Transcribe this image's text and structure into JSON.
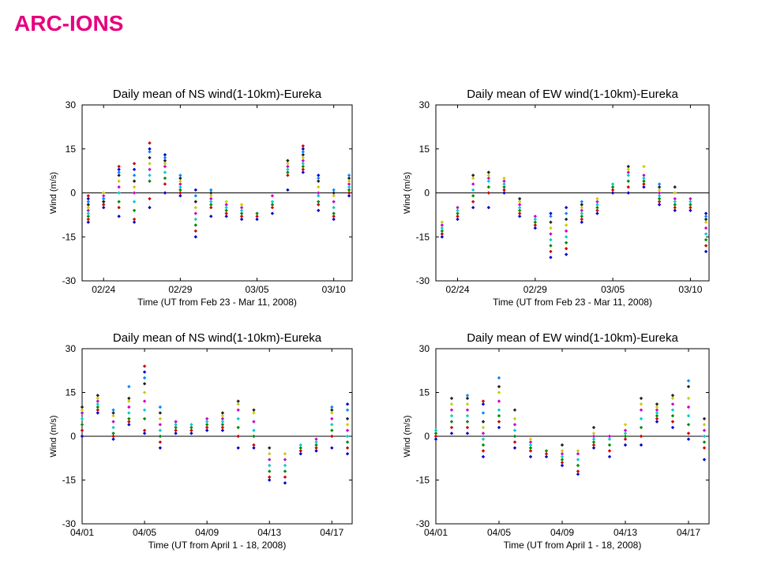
{
  "slide": {
    "title": "ARC-IONS"
  },
  "chart_data": [
    {
      "type": "scatter",
      "title": "Daily mean of NS wind(1-10km)-Eureka",
      "xlabel": "Time (UT from Feb 23 - Mar 11, 2008)",
      "ylabel": "Wind (m/s)",
      "xlim": [
        0.6,
        18.2
      ],
      "ylim": [
        -30,
        30
      ],
      "xticks": [
        {
          "x": 2,
          "label": "02/24"
        },
        {
          "x": 7,
          "label": "02/29"
        },
        {
          "x": 12,
          "label": "03/05"
        },
        {
          "x": 17,
          "label": "03/10"
        }
      ],
      "yticks": [
        30,
        15,
        0,
        -15,
        -30
      ],
      "zero_line": true,
      "grid": false,
      "days": [
        {
          "x": 1,
          "values": [
            -10,
            -9,
            -8,
            -7,
            -6,
            -5,
            -4,
            -3,
            -2,
            -1
          ]
        },
        {
          "x": 2,
          "values": [
            -5,
            -4,
            -3,
            -2,
            -1,
            0,
            -3,
            -2
          ]
        },
        {
          "x": 3,
          "values": [
            -8,
            -5,
            -3,
            0,
            2,
            4,
            6,
            7,
            8,
            9
          ]
        },
        {
          "x": 4,
          "values": [
            -10,
            -9,
            -6,
            -3,
            0,
            2,
            4,
            6,
            8,
            10
          ]
        },
        {
          "x": 5,
          "values": [
            -5,
            -2,
            4,
            6,
            8,
            10,
            12,
            14,
            15,
            17
          ]
        },
        {
          "x": 6,
          "values": [
            0,
            3,
            5,
            7,
            9,
            10,
            11,
            12,
            13
          ]
        },
        {
          "x": 7,
          "values": [
            -1,
            0,
            1,
            2,
            3,
            4,
            5,
            6
          ]
        },
        {
          "x": 8,
          "values": [
            -15,
            -13,
            -11,
            -9,
            -7,
            -5,
            -3,
            -1,
            1
          ]
        },
        {
          "x": 9,
          "values": [
            -8,
            -5,
            -4,
            -3,
            -2,
            -1,
            0,
            1
          ]
        },
        {
          "x": 10,
          "values": [
            -8,
            -7,
            -6,
            -5,
            -4,
            -3
          ]
        },
        {
          "x": 11,
          "values": [
            -9,
            -8,
            -7,
            -6,
            -5,
            -4
          ]
        },
        {
          "x": 12,
          "values": [
            -9,
            -8,
            -7
          ]
        },
        {
          "x": 13,
          "values": [
            -7,
            -5,
            -4,
            -3,
            -1
          ]
        },
        {
          "x": 14,
          "values": [
            1,
            6,
            7,
            8,
            9,
            10,
            11
          ]
        },
        {
          "x": 15,
          "values": [
            7,
            8,
            9,
            10,
            11,
            12,
            13,
            14,
            15,
            16
          ]
        },
        {
          "x": 16,
          "values": [
            -6,
            -4,
            -3,
            -1,
            0,
            2,
            4,
            5,
            6
          ]
        },
        {
          "x": 17,
          "values": [
            -9,
            -8,
            -7,
            -5,
            -3,
            -1,
            0,
            1
          ]
        },
        {
          "x": 18,
          "values": [
            -1,
            0,
            1,
            2,
            3,
            4,
            5,
            6
          ]
        }
      ]
    },
    {
      "type": "scatter",
      "title": "Daily mean of EW wind(1-10km)-Eureka",
      "xlabel": "Time (UT from Feb 23 - Mar 11, 2008)",
      "ylabel": "Wind (m/s)",
      "xlim": [
        0.6,
        18.2
      ],
      "ylim": [
        -30,
        30
      ],
      "xticks": [
        {
          "x": 2,
          "label": "02/24"
        },
        {
          "x": 7,
          "label": "02/29"
        },
        {
          "x": 12,
          "label": "03/05"
        },
        {
          "x": 17,
          "label": "03/10"
        }
      ],
      "yticks": [
        30,
        15,
        0,
        -15,
        -30
      ],
      "zero_line": true,
      "grid": false,
      "days": [
        {
          "x": 1,
          "values": [
            -15,
            -14,
            -13,
            -12,
            -11,
            -10
          ]
        },
        {
          "x": 2,
          "values": [
            -9,
            -8,
            -7,
            -6,
            -5
          ]
        },
        {
          "x": 3,
          "values": [
            -5,
            -3,
            -1,
            1,
            3,
            5,
            6
          ]
        },
        {
          "x": 4,
          "values": [
            -5,
            0,
            2,
            4,
            5,
            6,
            7
          ]
        },
        {
          "x": 5,
          "values": [
            0,
            1,
            2,
            3,
            4,
            5
          ]
        },
        {
          "x": 6,
          "values": [
            -8,
            -7,
            -6,
            -5,
            -4,
            -3,
            -2
          ]
        },
        {
          "x": 7,
          "values": [
            -12,
            -11,
            -10,
            -9,
            -8
          ]
        },
        {
          "x": 8,
          "values": [
            -22,
            -20,
            -18,
            -16,
            -14,
            -12,
            -10,
            -8,
            -7
          ]
        },
        {
          "x": 9,
          "values": [
            -21,
            -19,
            -17,
            -15,
            -13,
            -11,
            -9,
            -7,
            -5
          ]
        },
        {
          "x": 10,
          "values": [
            -10,
            -9,
            -8,
            -7,
            -6,
            -5,
            -4,
            -3
          ]
        },
        {
          "x": 11,
          "values": [
            -7,
            -6,
            -5,
            -4,
            -3,
            -2
          ]
        },
        {
          "x": 12,
          "values": [
            0,
            1,
            2,
            3
          ]
        },
        {
          "x": 13,
          "values": [
            0,
            2,
            4,
            6,
            7,
            8,
            9
          ]
        },
        {
          "x": 14,
          "values": [
            2,
            3,
            4,
            5,
            6,
            9
          ]
        },
        {
          "x": 15,
          "values": [
            -4,
            -3,
            -2,
            -1,
            0,
            1,
            2,
            3
          ]
        },
        {
          "x": 16,
          "values": [
            -6,
            -5,
            -4,
            -3,
            -2,
            0,
            2
          ]
        },
        {
          "x": 17,
          "values": [
            -6,
            -5,
            -4,
            -3,
            -2
          ]
        },
        {
          "x": 18,
          "values": [
            -20,
            -18,
            -16,
            -14,
            -12,
            -10,
            -9,
            -8,
            -7
          ]
        }
      ]
    },
    {
      "type": "scatter",
      "title": "Daily mean of NS wind(1-10km)-Eureka",
      "xlabel": "Time (UT from April 1 - 18, 2008)",
      "ylabel": "Wind (m/s)",
      "xlim": [
        1,
        18.3
      ],
      "ylim": [
        -30,
        30
      ],
      "xticks": [
        {
          "x": 1,
          "label": "04/01"
        },
        {
          "x": 5,
          "label": "04/05"
        },
        {
          "x": 9,
          "label": "04/09"
        },
        {
          "x": 13,
          "label": "04/13"
        },
        {
          "x": 17,
          "label": "04/17"
        }
      ],
      "yticks": [
        30,
        15,
        0,
        -15,
        -30
      ],
      "zero_line": true,
      "grid": false,
      "days": [
        {
          "x": 1,
          "values": [
            0,
            2,
            4,
            6,
            8,
            9,
            10
          ]
        },
        {
          "x": 2,
          "values": [
            8,
            9,
            10,
            11,
            12,
            13,
            14
          ]
        },
        {
          "x": 3,
          "values": [
            -1,
            0,
            1,
            3,
            5,
            7,
            8,
            9
          ]
        },
        {
          "x": 4,
          "values": [
            4,
            5,
            6,
            8,
            10,
            12,
            13,
            17
          ]
        },
        {
          "x": 5,
          "values": [
            1,
            2,
            6,
            9,
            12,
            15,
            18,
            20,
            22,
            24
          ]
        },
        {
          "x": 6,
          "values": [
            -4,
            -2,
            0,
            2,
            4,
            6,
            8,
            10
          ]
        },
        {
          "x": 7,
          "values": [
            1,
            2,
            3,
            4,
            5
          ]
        },
        {
          "x": 8,
          "values": [
            1,
            2,
            3,
            4
          ]
        },
        {
          "x": 9,
          "values": [
            2,
            3,
            4,
            5,
            6
          ]
        },
        {
          "x": 10,
          "values": [
            2,
            3,
            4,
            5,
            6,
            7,
            8
          ]
        },
        {
          "x": 11,
          "values": [
            -4,
            0,
            3,
            6,
            9,
            11,
            12
          ]
        },
        {
          "x": 12,
          "values": [
            -4,
            -3,
            0,
            2,
            5,
            8,
            9
          ]
        },
        {
          "x": 13,
          "values": [
            -15,
            -14,
            -12,
            -10,
            -8,
            -6,
            -4
          ]
        },
        {
          "x": 14,
          "values": [
            -16,
            -14,
            -12,
            -10,
            -8,
            -6
          ]
        },
        {
          "x": 15,
          "values": [
            -6,
            -5,
            -4,
            -3
          ]
        },
        {
          "x": 16,
          "values": [
            -5,
            -4,
            -3,
            -2,
            -1
          ]
        },
        {
          "x": 17,
          "values": [
            -4,
            0,
            2,
            4,
            6,
            8,
            9,
            10
          ]
        },
        {
          "x": 18,
          "values": [
            -6,
            -4,
            -2,
            0,
            2,
            4,
            6,
            9,
            11
          ]
        }
      ]
    },
    {
      "type": "scatter",
      "title": "Daily mean of EW wind(1-10km)-Eureka",
      "xlabel": "Time (UT from April 1 - 18, 2008)",
      "ylabel": "Wind (m/s)",
      "xlim": [
        1,
        18.3
      ],
      "ylim": [
        -30,
        30
      ],
      "xticks": [
        {
          "x": 1,
          "label": "04/01"
        },
        {
          "x": 5,
          "label": "04/05"
        },
        {
          "x": 9,
          "label": "04/09"
        },
        {
          "x": 13,
          "label": "04/13"
        },
        {
          "x": 17,
          "label": "04/17"
        }
      ],
      "yticks": [
        30,
        15,
        0,
        -15,
        -30
      ],
      "zero_line": true,
      "grid": false,
      "days": [
        {
          "x": 1,
          "values": [
            -1,
            0,
            1,
            2
          ]
        },
        {
          "x": 2,
          "values": [
            1,
            3,
            5,
            7,
            9,
            11,
            13
          ]
        },
        {
          "x": 3,
          "values": [
            1,
            3,
            5,
            7,
            9,
            11,
            13,
            14
          ]
        },
        {
          "x": 4,
          "values": [
            -7,
            -5,
            -3,
            -1,
            1,
            3,
            5,
            8,
            11,
            12
          ]
        },
        {
          "x": 5,
          "values": [
            3,
            5,
            7,
            9,
            12,
            15,
            17,
            20
          ]
        },
        {
          "x": 6,
          "values": [
            -4,
            -2,
            0,
            2,
            4,
            6,
            9
          ]
        },
        {
          "x": 7,
          "values": [
            -7,
            -5,
            -4,
            -3,
            -2,
            -1
          ]
        },
        {
          "x": 8,
          "values": [
            -7,
            -6,
            -5
          ]
        },
        {
          "x": 9,
          "values": [
            -10,
            -9,
            -8,
            -7,
            -6,
            -5,
            -3
          ]
        },
        {
          "x": 10,
          "values": [
            -13,
            -12,
            -10,
            -8,
            -6,
            -5
          ]
        },
        {
          "x": 11,
          "values": [
            -4,
            -3,
            -2,
            -1,
            0,
            1,
            3
          ]
        },
        {
          "x": 12,
          "values": [
            -7,
            -5,
            -3,
            -1,
            0
          ]
        },
        {
          "x": 13,
          "values": [
            -3,
            -1,
            0,
            1,
            2,
            4
          ]
        },
        {
          "x": 14,
          "values": [
            -3,
            0,
            3,
            6,
            9,
            11,
            13
          ]
        },
        {
          "x": 15,
          "values": [
            5,
            6,
            7,
            8,
            9,
            10,
            11
          ]
        },
        {
          "x": 16,
          "values": [
            3,
            5,
            7,
            9,
            11,
            13,
            14
          ]
        },
        {
          "x": 17,
          "values": [
            -1,
            1,
            4,
            7,
            10,
            13,
            17,
            19
          ]
        },
        {
          "x": 18,
          "values": [
            -8,
            -4,
            -2,
            0,
            2,
            4,
            6
          ]
        }
      ]
    }
  ],
  "marker_colors": [
    "#0000cc",
    "#cc0000",
    "#008800",
    "#00cccc",
    "#cc00cc",
    "#cccc00",
    "#222222",
    "#0088ff"
  ]
}
